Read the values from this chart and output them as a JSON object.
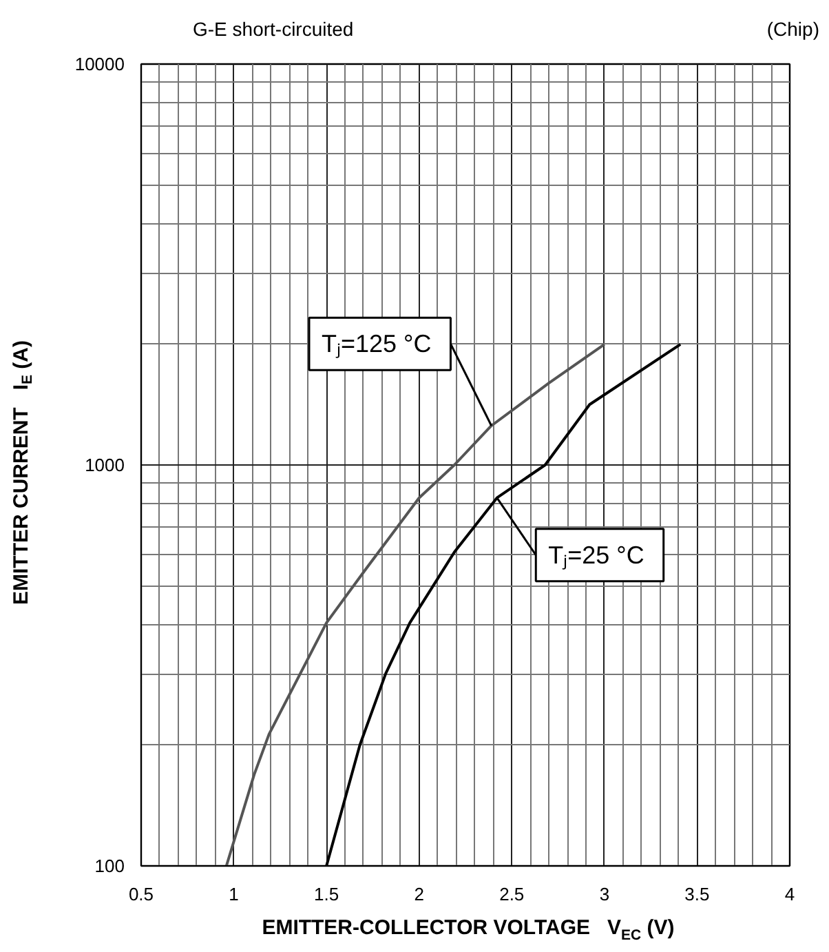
{
  "chart_data": {
    "type": "line",
    "title": "G-E short-circuited",
    "xlabel": "EMITTER-COLLECTOR VOLTAGE   V$_{EC}$ (V)",
    "ylabel": "EMITTER CURRENT   I$_{E}$ (A)",
    "log": "y",
    "xlim": [
      0.5,
      4
    ],
    "ylim": [
      100,
      10000
    ],
    "xticks": [
      0.5,
      1,
      1.5,
      2,
      2.5,
      3,
      3.5,
      4
    ],
    "yticks": [
      100,
      1000,
      10000
    ],
    "grid": true,
    "series": [
      {
        "color": "#555555",
        "x": [
          0.96,
          1.11,
          1.19,
          1.5,
          1.71,
          2.0,
          2.19,
          2.39,
          2.7,
          3.0
        ],
        "values": [
          100,
          169,
          213,
          404,
          548,
          828,
          1000,
          1253,
          1600,
          2000
        ]
      },
      {
        "color": "#000000",
        "x": [
          1.5,
          1.68,
          1.82,
          1.95,
          2.19,
          2.42,
          2.68,
          2.92,
          3.41
        ],
        "values": [
          100,
          200,
          302,
          404,
          606,
          828,
          1000,
          1415,
          2000
        ]
      }
    ],
    "annotations": [
      "(Chip)",
      {
        "text": "Tⱼ=125  °C",
        "x": 2.39,
        "y": 1253
      },
      {
        "text": "Tⱼ=25  °C",
        "x": 2.42,
        "y": 828
      }
    ]
  }
}
